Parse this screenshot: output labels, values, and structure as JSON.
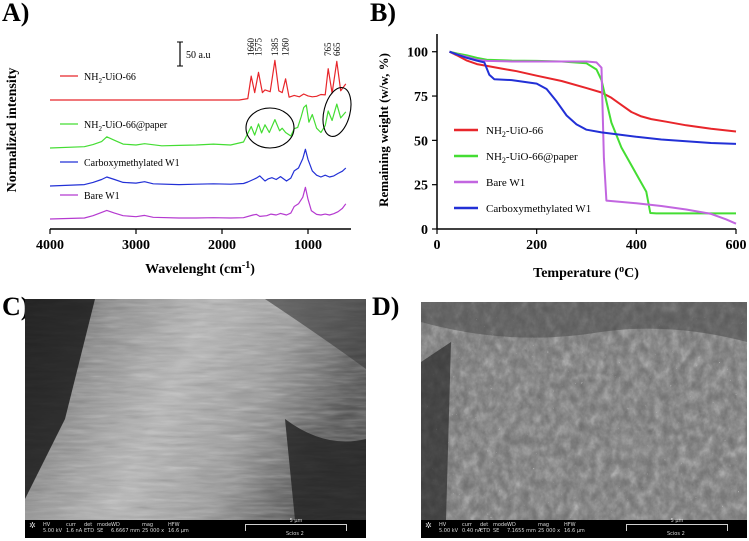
{
  "panels": {
    "a": {
      "letter": "A)"
    },
    "b": {
      "letter": "B)"
    },
    "c": {
      "letter": "C)"
    },
    "d": {
      "letter": "D)"
    }
  },
  "chart_data": [
    {
      "type": "line",
      "xlabel": "Wavelenght (cm",
      "xlabel_sup": "-1",
      "xlabel_close": ")",
      "ylabel": "Normalized intensity",
      "xlim": [
        4000,
        500
      ],
      "xticks": [
        "4000",
        "3000",
        "2000",
        "1000"
      ],
      "xtick_values": [
        4000,
        3000,
        2000,
        1000
      ],
      "scale_bar_label": "50 a.u",
      "peak_labels": [
        {
          "text": "1660",
          "x": 1660
        },
        {
          "text": "1575",
          "x": 1575
        },
        {
          "text": "1385",
          "x": 1385
        },
        {
          "text": "1260",
          "x": 1260
        },
        {
          "text": "765",
          "x": 765
        },
        {
          "text": "665",
          "x": 665
        }
      ],
      "grid": false,
      "series": [
        {
          "name": "NH2-UiO-66",
          "name_main": "NH",
          "name_sub": "2",
          "name_rest": "-UiO-66",
          "color": "#e8262b",
          "x": [
            1800,
            1700,
            1660,
            1620,
            1575,
            1530,
            1500,
            1440,
            1385,
            1340,
            1300,
            1260,
            1220,
            1160,
            1100,
            1050,
            1000,
            950,
            900,
            850,
            800,
            765,
            720,
            665,
            620,
            560
          ],
          "y": [
            0.0,
            0.3,
            5.2,
            1.6,
            6.0,
            1.6,
            2.2,
            1.8,
            8.6,
            2.0,
            1.6,
            4.6,
            0.6,
            1.0,
            0.7,
            1.3,
            0.9,
            0.7,
            0.8,
            1.2,
            1.1,
            6.8,
            1.5,
            8.4,
            2.0,
            3.5
          ]
        },
        {
          "name": "NH2-UiO-66@paper",
          "name_main": "NH",
          "name_sub": "2",
          "name_rest": "-UiO-66@paper",
          "color": "#44dd33",
          "x": [
            4000,
            3600,
            3500,
            3400,
            3340,
            3250,
            3150,
            3000,
            2900,
            2700,
            2500,
            2300,
            2100,
            1900,
            1750,
            1660,
            1620,
            1575,
            1540,
            1500,
            1450,
            1385,
            1330,
            1300,
            1260,
            1200,
            1160,
            1120,
            1080,
            1050,
            1020,
            990,
            950,
            900,
            850,
            800,
            765,
            720,
            665,
            620,
            560
          ],
          "y": [
            0.0,
            0.3,
            0.8,
            1.5,
            2.6,
            1.8,
            0.9,
            0.7,
            1.0,
            0.5,
            0.6,
            0.7,
            0.9,
            0.7,
            1.4,
            5.0,
            3.0,
            5.6,
            3.5,
            5.4,
            3.6,
            6.6,
            4.0,
            4.6,
            3.6,
            2.8,
            4.5,
            4.8,
            7.2,
            9.4,
            10.0,
            6.0,
            7.8,
            4.6,
            3.6,
            5.2,
            8.6,
            6.4,
            10.2,
            7.0,
            8.4
          ]
        },
        {
          "name": "Carboxymethylated W1",
          "color": "#2230d6",
          "x": [
            4000,
            3600,
            3500,
            3400,
            3340,
            3250,
            3150,
            3000,
            2900,
            2800,
            2500,
            2300,
            2100,
            1900,
            1750,
            1700,
            1600,
            1560,
            1500,
            1460,
            1420,
            1370,
            1320,
            1250,
            1200,
            1160,
            1110,
            1060,
            1030,
            1000,
            950,
            900,
            850,
            800,
            750,
            700,
            650,
            600,
            560
          ],
          "y": [
            0.0,
            0.4,
            1.0,
            1.8,
            2.5,
            1.8,
            1.0,
            0.8,
            1.2,
            0.6,
            0.4,
            0.5,
            0.6,
            0.5,
            0.7,
            1.1,
            2.2,
            2.8,
            1.4,
            2.0,
            2.3,
            1.8,
            2.6,
            1.4,
            2.2,
            4.2,
            5.0,
            7.6,
            10.2,
            7.4,
            4.2,
            3.0,
            2.5,
            3.0,
            2.5,
            2.8,
            3.5,
            4.1,
            5.0
          ]
        },
        {
          "name": "Bare W1",
          "color": "#b53ad0",
          "x": [
            4000,
            3600,
            3500,
            3400,
            3340,
            3250,
            3150,
            3000,
            2900,
            2800,
            2500,
            2300,
            2100,
            1900,
            1750,
            1640,
            1600,
            1560,
            1480,
            1430,
            1370,
            1320,
            1250,
            1200,
            1160,
            1110,
            1060,
            1030,
            1000,
            960,
            900,
            850,
            800,
            750,
            700,
            650,
            600,
            560
          ],
          "y": [
            0.0,
            0.3,
            1.0,
            2.0,
            2.6,
            1.8,
            1.0,
            0.7,
            1.1,
            0.5,
            0.3,
            0.3,
            0.4,
            0.3,
            0.4,
            1.2,
            1.4,
            0.8,
            1.0,
            1.5,
            1.2,
            1.7,
            1.2,
            1.8,
            3.8,
            4.6,
            6.6,
            9.6,
            6.0,
            2.5,
            1.4,
            1.2,
            1.5,
            1.2,
            1.6,
            2.2,
            3.2,
            4.6
          ]
        }
      ]
    },
    {
      "type": "line",
      "xlabel": "Temperature (",
      "xlabel_sup": "o",
      "xlabel_close": "C)",
      "ylabel": "Remaining weight (w/w, %)",
      "xlim": [
        0,
        600
      ],
      "ylim": [
        0,
        110
      ],
      "xticks": [
        "0",
        "200",
        "400",
        "600"
      ],
      "xtick_values": [
        0,
        200,
        400,
        600
      ],
      "yticks": [
        "0",
        "25",
        "50",
        "75",
        "100"
      ],
      "ytick_values": [
        0,
        25,
        50,
        75,
        100
      ],
      "legend_position": "right",
      "grid": false,
      "series": [
        {
          "name": "NH2-UiO-66",
          "name_main": "NH",
          "name_sub": "2",
          "name_rest": "-UiO-66",
          "color": "#e8262b",
          "x": [
            25,
            40,
            60,
            80,
            100,
            130,
            160,
            200,
            250,
            300,
            330,
            350,
            370,
            390,
            410,
            430,
            460,
            500,
            550,
            600
          ],
          "y": [
            100,
            98,
            95,
            93,
            92,
            90.5,
            89,
            86.5,
            83.5,
            79.5,
            77,
            74,
            70,
            66,
            63.5,
            62,
            60.5,
            58.5,
            56.5,
            55
          ]
        },
        {
          "name": "NH2-UiO-66@paper",
          "name_main": "NH",
          "name_sub": "2",
          "name_rest": "-UiO-66@paper",
          "color": "#44dd33",
          "x": [
            25,
            40,
            60,
            80,
            100,
            150,
            200,
            250,
            300,
            320,
            330,
            340,
            350,
            370,
            400,
            420,
            428,
            440,
            500,
            600
          ],
          "y": [
            100,
            99,
            98,
            96.5,
            95.5,
            95,
            94.8,
            94.5,
            93.5,
            90,
            84,
            72,
            60,
            46,
            31,
            21,
            9,
            8.8,
            8.8,
            8.8
          ]
        },
        {
          "name": "Bare W1",
          "color": "#c266e0",
          "x": [
            25,
            40,
            60,
            80,
            100,
            150,
            200,
            250,
            300,
            320,
            330,
            335,
            340,
            360,
            400,
            450,
            500,
            550,
            580,
            600
          ],
          "y": [
            100,
            98.5,
            97,
            95.5,
            94.8,
            94.5,
            94.5,
            94.5,
            94.5,
            94,
            91,
            40,
            16,
            15.5,
            14.5,
            13,
            11,
            8.5,
            5.5,
            3
          ]
        },
        {
          "name": "Carboxymethylated W1",
          "color": "#2230d6",
          "x": [
            25,
            40,
            60,
            80,
            95,
            105,
            115,
            150,
            200,
            220,
            240,
            260,
            280,
            300,
            330,
            360,
            400,
            450,
            500,
            550,
            600
          ],
          "y": [
            100,
            98.5,
            96.5,
            95,
            94,
            87,
            84.5,
            84,
            82,
            79,
            72,
            64,
            59,
            56,
            54.5,
            53.5,
            52,
            50.5,
            49.5,
            48.5,
            48
          ]
        }
      ]
    }
  ],
  "sem_c": {
    "hv_label": "HV",
    "hv": "5.00 kV",
    "curr_label": "curr",
    "curr": "1.6 nA",
    "det_label": "det",
    "det": "ETD",
    "mode_label": "mode",
    "mode": "SE",
    "wd_label": "WD",
    "wd": "6.6667 mm",
    "mag_label": "mag",
    "mag": "25 000 x",
    "hfw_label": "HFW",
    "hfw": "16.6 μm",
    "scale": "5 μm",
    "instrument": "Scios 2"
  },
  "sem_d": {
    "hv_label": "HV",
    "hv": "5.00 kV",
    "curr_label": "curr",
    "curr": "0.40 nA",
    "det_label": "det",
    "det": "ETD",
    "mode_label": "mode",
    "mode": "SE",
    "wd_label": "WD",
    "wd": "7.1655 mm",
    "mag_label": "mag",
    "mag": "25 000 x",
    "hfw_label": "HFW",
    "hfw": "16.6 μm",
    "scale": "5 μm",
    "instrument": "Scios 2"
  }
}
